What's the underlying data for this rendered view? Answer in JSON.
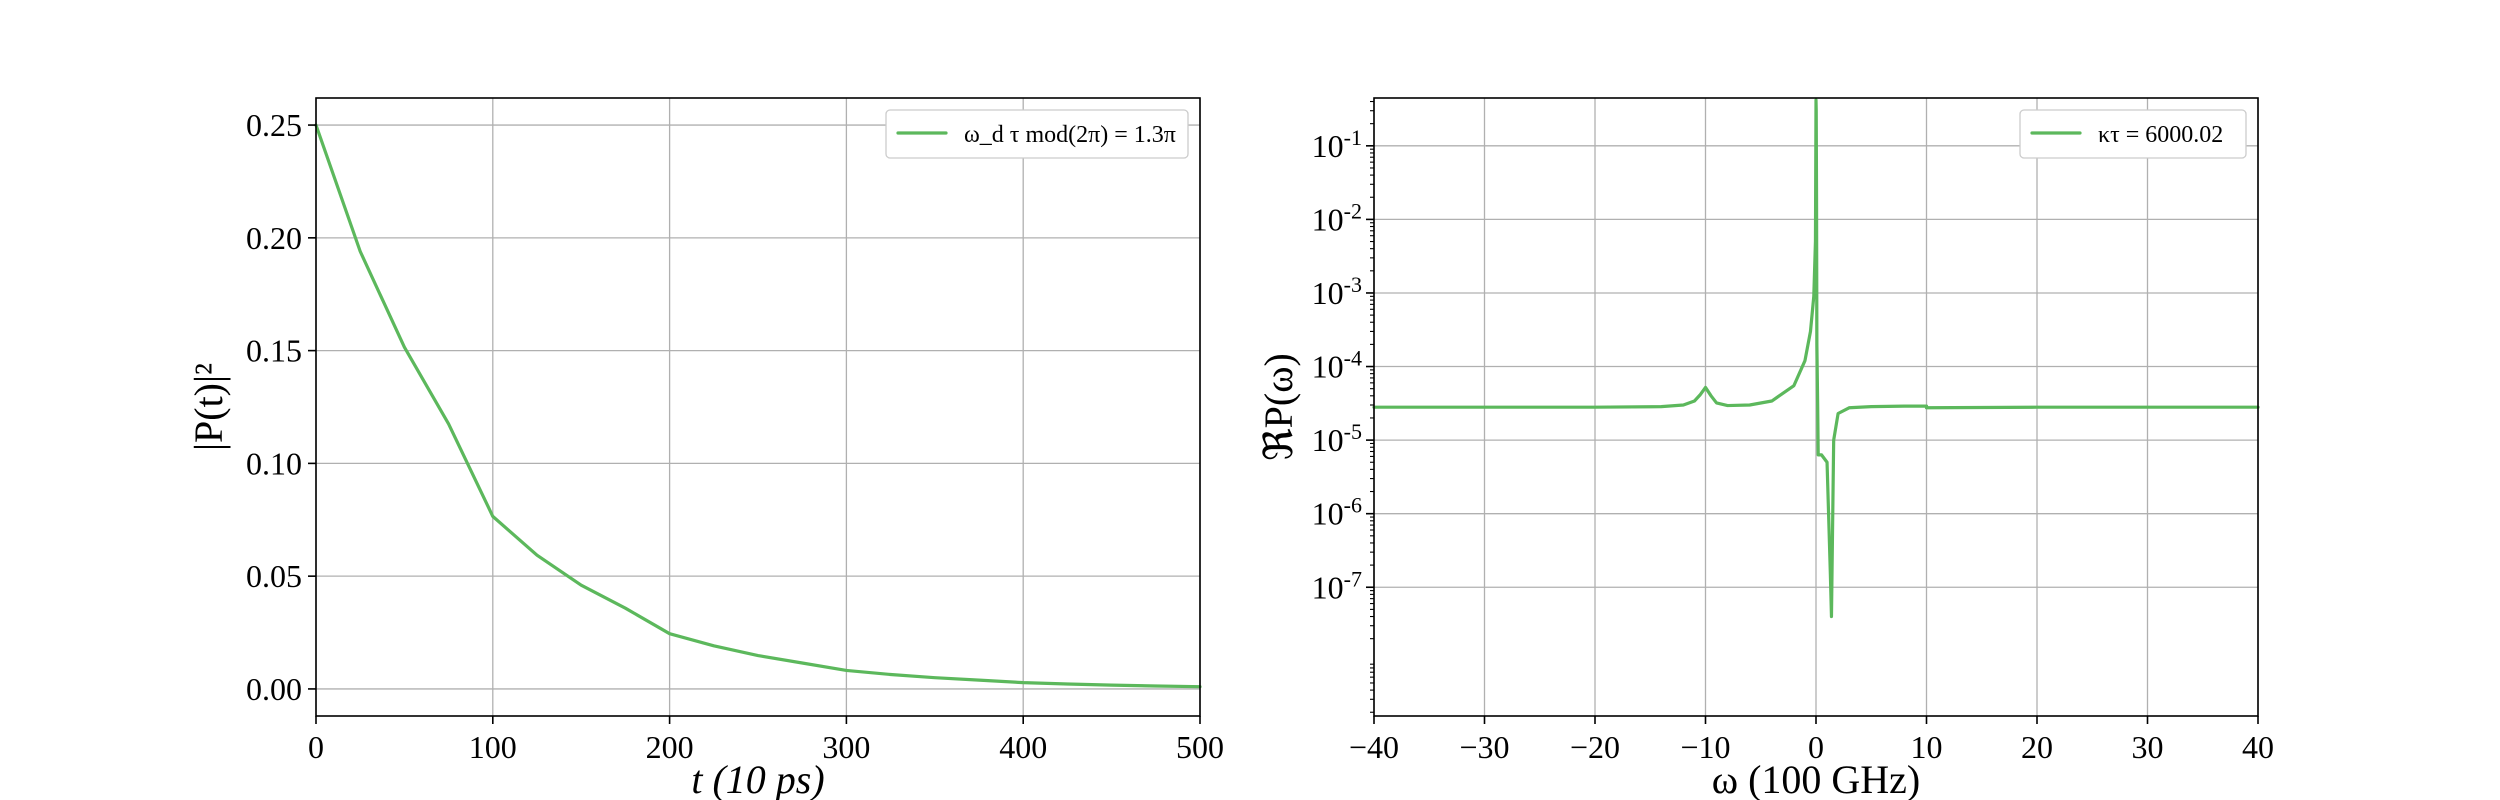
{
  "chart_data": [
    {
      "type": "line",
      "xlabel": "t (10 ps)",
      "ylabel": "|P(t)|²",
      "xlim": [
        0,
        500
      ],
      "ylim": [
        -0.012,
        0.262
      ],
      "xticks": [
        0,
        100,
        200,
        300,
        400,
        500
      ],
      "xtick_labels": [
        "0",
        "100",
        "200",
        "300",
        "400",
        "500"
      ],
      "yticks": [
        0.0,
        0.05,
        0.1,
        0.15,
        0.2,
        0.25
      ],
      "ytick_labels": [
        "0.00",
        "0.05",
        "0.10",
        "0.15",
        "0.20",
        "0.25"
      ],
      "grid": true,
      "legend_position": "top-right",
      "series": [
        {
          "name": "ω_d τ mod(2π) = 1.3π",
          "color": "#5cb85c",
          "x": [
            0,
            25,
            50,
            75,
            100,
            125,
            150,
            175,
            200,
            225,
            250,
            275,
            300,
            325,
            350,
            375,
            400,
            425,
            450,
            475,
            500
          ],
          "y": [
            0.25,
            0.194,
            0.1515,
            0.1175,
            0.0765,
            0.0593,
            0.046,
            0.0358,
            0.0245,
            0.0191,
            0.0148,
            0.0115,
            0.0082,
            0.0064,
            0.005,
            0.0039,
            0.0028,
            0.0022,
            0.0017,
            0.0013,
            0.001
          ]
        }
      ]
    },
    {
      "type": "line",
      "xlabel": "ω (100 GHz)",
      "ylabel": "ℜP(ω)",
      "xlim": [
        -40,
        40
      ],
      "ylim_log10": [
        -8.75,
        -0.35
      ],
      "yscale": "log",
      "xticks": [
        -40,
        -30,
        -20,
        -10,
        0,
        10,
        20,
        30,
        40
      ],
      "xtick_labels": [
        "−40",
        "−30",
        "−20",
        "−10",
        "0",
        "10",
        "20",
        "30",
        "40"
      ],
      "yticks_log10": [
        -1,
        -2,
        -3,
        -4,
        -5,
        -6,
        -7
      ],
      "ytick_labels": [
        {
          "base": "10",
          "exp": "-1"
        },
        {
          "base": "10",
          "exp": "-2"
        },
        {
          "base": "10",
          "exp": "-3"
        },
        {
          "base": "10",
          "exp": "-4"
        },
        {
          "base": "10",
          "exp": "-5"
        },
        {
          "base": "10",
          "exp": "-6"
        },
        {
          "base": "10",
          "exp": "-7"
        }
      ],
      "grid": true,
      "legend_position": "top-right",
      "series": [
        {
          "name": "κτ = 6000.02",
          "color": "#5cb85c",
          "x": [
            -40,
            -20,
            -14,
            -12,
            -11,
            -10.5,
            -10,
            -9.5,
            -9,
            -8,
            -6,
            -4,
            -2,
            -1,
            -0.5,
            -0.2,
            -0.05,
            0.0,
            0.02,
            0.05,
            0.08,
            0.15,
            0.2,
            0.2,
            0.5,
            1.0,
            1.3,
            1.4,
            1.6,
            2.0,
            3.0,
            5.0,
            8.0,
            10.0,
            10.0,
            20,
            40
          ],
          "y": [
            2.8e-05,
            2.8e-05,
            2.85e-05,
            3e-05,
            3.4e-05,
            4.1e-05,
            5.2e-05,
            4e-05,
            3.2e-05,
            2.95e-05,
            3e-05,
            3.4e-05,
            5.5e-05,
            0.00012,
            0.0003,
            0.0009,
            0.005,
            0.42,
            0.3,
            0.02,
            0.0002,
            3e-05,
            6.3e-06,
            6.3e-06,
            6.3e-06,
            5e-06,
            1.5e-07,
            4e-08,
            1e-05,
            2.3e-05,
            2.75e-05,
            2.85e-05,
            2.9e-05,
            2.9e-05,
            2.75e-05,
            2.8e-05,
            2.8e-05
          ]
        }
      ]
    }
  ]
}
